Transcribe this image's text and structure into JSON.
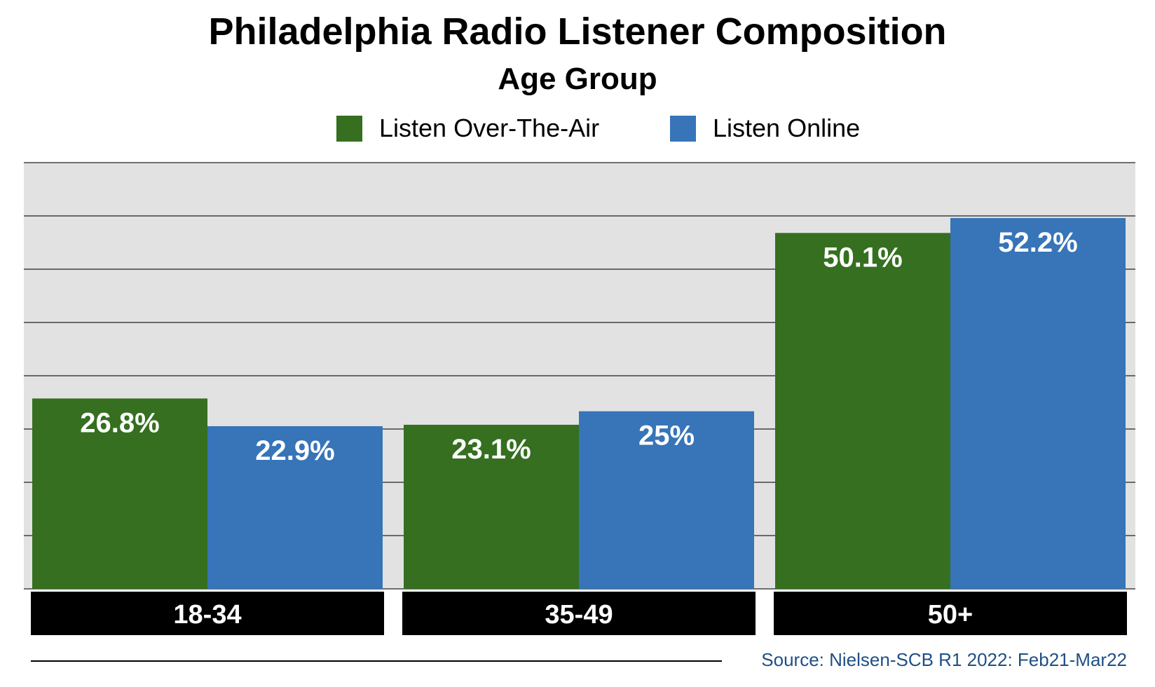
{
  "chart_data": {
    "type": "bar",
    "title": "Philadelphia Radio Listener Composition",
    "subtitle": "Age Group",
    "categories": [
      "18-34",
      "35-49",
      "50+"
    ],
    "series": [
      {
        "name": "Listen Over-The-Air",
        "color": "#356f1f",
        "values": [
          26.8,
          23.1,
          50.1
        ],
        "labels": [
          "26.8%",
          "23.1%",
          "50.1%"
        ]
      },
      {
        "name": "Listen Online",
        "color": "#3774b8",
        "values": [
          22.9,
          25,
          52.2
        ],
        "labels": [
          "22.9%",
          "25%",
          "52.2%"
        ]
      }
    ],
    "ylim": [
      0,
      60
    ],
    "grid": true,
    "legend_position": "top",
    "source": "Source: Nielsen-SCB R1 2022: Feb21-Mar22"
  }
}
